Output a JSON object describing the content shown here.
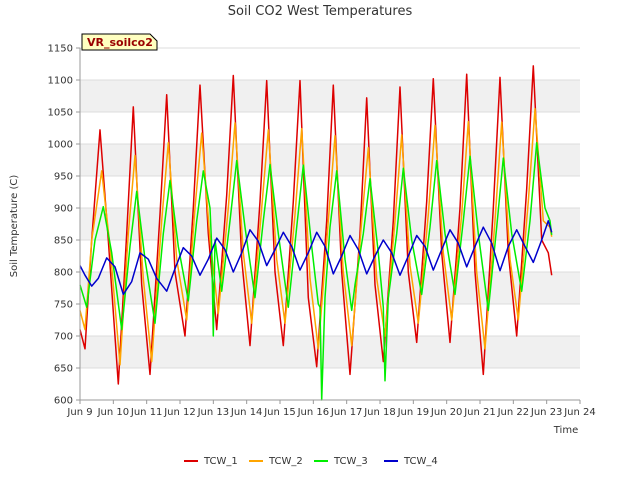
{
  "chart_data": {
    "type": "line",
    "title": "Soil CO2 West Temperatures",
    "xlabel": "Time",
    "ylabel": "Soil Temperature (C)",
    "badge": "VR_soilco2",
    "xlim": [
      9.0,
      24.0
    ],
    "ylim": [
      600,
      1150
    ],
    "x_ticks": [
      9,
      10,
      11,
      12,
      13,
      14,
      15,
      16,
      17,
      18,
      19,
      20,
      21,
      22,
      23,
      24
    ],
    "x_tick_labels": [
      "Jun 9",
      "Jun 10",
      "Jun 11",
      "Jun 12",
      "Jun 13",
      "Jun 14",
      "Jun 15",
      "Jun 16",
      "Jun 17",
      "Jun 18",
      "Jun 19",
      "Jun 20",
      "Jun 21",
      "Jun 22",
      "Jun 23",
      "Jun 24"
    ],
    "y_ticks": [
      600,
      650,
      700,
      750,
      800,
      850,
      900,
      950,
      1000,
      1050,
      1100,
      1150
    ],
    "grid": "horizontal bands",
    "legend_position": "bottom",
    "series": [
      {
        "name": "TCW_1",
        "color": "#dd0000",
        "x": [
          9.0,
          9.15,
          9.35,
          9.6,
          9.85,
          10.15,
          10.4,
          10.6,
          10.85,
          11.1,
          11.4,
          11.6,
          11.85,
          12.15,
          12.4,
          12.6,
          12.85,
          13.1,
          13.4,
          13.6,
          13.85,
          14.1,
          14.4,
          14.6,
          14.85,
          15.1,
          15.4,
          15.6,
          15.85,
          16.1,
          16.4,
          16.6,
          16.85,
          17.1,
          17.4,
          17.6,
          17.85,
          18.1,
          18.4,
          18.6,
          18.85,
          19.1,
          19.4,
          19.6,
          19.85,
          20.1,
          20.4,
          20.6,
          20.85,
          21.1,
          21.4,
          21.6,
          21.85,
          22.1,
          22.4,
          22.6,
          22.85,
          23.05,
          23.15
        ],
        "y": [
          710,
          680,
          850,
          1022,
          850,
          625,
          860,
          1058,
          780,
          640,
          890,
          1077,
          800,
          700,
          900,
          1092,
          860,
          710,
          920,
          1107,
          820,
          685,
          910,
          1099,
          800,
          685,
          910,
          1099,
          760,
          652,
          880,
          1092,
          800,
          640,
          860,
          1072,
          780,
          660,
          880,
          1089,
          800,
          690,
          910,
          1102,
          830,
          690,
          900,
          1109,
          800,
          640,
          900,
          1104,
          830,
          700,
          930,
          1122,
          850,
          830,
          795
        ]
      },
      {
        "name": "TCW_2",
        "color": "#ffa500",
        "x": [
          9.0,
          9.15,
          9.35,
          9.65,
          9.9,
          10.2,
          10.45,
          10.65,
          10.9,
          11.15,
          11.45,
          11.65,
          11.9,
          12.2,
          12.45,
          12.65,
          12.9,
          13.15,
          13.45,
          13.65,
          13.9,
          14.15,
          14.45,
          14.65,
          14.9,
          15.15,
          15.45,
          15.65,
          15.9,
          16.15,
          16.45,
          16.65,
          16.9,
          17.15,
          17.45,
          17.65,
          17.9,
          18.15,
          18.45,
          18.65,
          18.9,
          19.15,
          19.45,
          19.65,
          19.9,
          20.15,
          20.45,
          20.65,
          20.9,
          21.15,
          21.45,
          21.65,
          21.9,
          22.15,
          22.45,
          22.65,
          22.9,
          23.1,
          23.15
        ],
        "y": [
          740,
          710,
          850,
          958,
          840,
          655,
          860,
          982,
          790,
          660,
          880,
          1002,
          820,
          725,
          900,
          1017,
          850,
          735,
          900,
          1033,
          830,
          720,
          900,
          1022,
          820,
          720,
          890,
          1024,
          790,
          680,
          880,
          1013,
          800,
          685,
          880,
          994,
          790,
          700,
          880,
          1014,
          810,
          720,
          890,
          1029,
          830,
          725,
          890,
          1035,
          800,
          680,
          880,
          1034,
          820,
          725,
          910,
          1055,
          880,
          870,
          855
        ]
      },
      {
        "name": "TCW_3",
        "color": "#00ee00",
        "x": [
          9.0,
          9.2,
          9.45,
          9.7,
          9.95,
          10.25,
          10.5,
          10.7,
          10.95,
          11.25,
          11.5,
          11.7,
          11.95,
          12.25,
          12.5,
          12.7,
          12.9,
          12.95,
          13.0,
          13.05,
          13.25,
          13.5,
          13.7,
          13.95,
          14.25,
          14.5,
          14.7,
          14.95,
          15.25,
          15.5,
          15.7,
          15.95,
          16.15,
          16.2,
          16.25,
          16.35,
          16.5,
          16.7,
          16.95,
          17.15,
          17.25,
          17.5,
          17.7,
          17.95,
          18.1,
          18.15,
          18.25,
          18.5,
          18.7,
          18.95,
          19.25,
          19.5,
          19.7,
          19.95,
          20.25,
          20.5,
          20.7,
          20.95,
          21.25,
          21.5,
          21.7,
          21.95,
          22.25,
          22.5,
          22.7,
          22.95,
          23.1,
          23.15
        ],
        "y": [
          780,
          745,
          850,
          902,
          830,
          710,
          840,
          926,
          820,
          720,
          860,
          943,
          840,
          755,
          880,
          958,
          900,
          840,
          700,
          850,
          770,
          880,
          974,
          870,
          760,
          880,
          968,
          860,
          745,
          870,
          967,
          840,
          750,
          745,
          600,
          760,
          870,
          958,
          820,
          740,
          780,
          860,
          946,
          830,
          745,
          630,
          760,
          860,
          962,
          850,
          765,
          870,
          974,
          860,
          765,
          880,
          981,
          860,
          740,
          870,
          978,
          860,
          770,
          880,
          1002,
          900,
          880,
          858
        ]
      },
      {
        "name": "TCW_4",
        "color": "#0000cc",
        "x": [
          9.0,
          9.15,
          9.35,
          9.55,
          9.8,
          10.05,
          10.3,
          10.55,
          10.8,
          11.05,
          11.3,
          11.6,
          11.85,
          12.1,
          12.35,
          12.6,
          12.85,
          13.1,
          13.35,
          13.6,
          13.85,
          14.1,
          14.35,
          14.6,
          14.85,
          15.1,
          15.35,
          15.6,
          15.85,
          16.1,
          16.35,
          16.6,
          16.85,
          17.1,
          17.35,
          17.6,
          17.85,
          18.1,
          18.35,
          18.6,
          18.85,
          19.1,
          19.35,
          19.6,
          19.85,
          20.1,
          20.35,
          20.6,
          20.85,
          21.1,
          21.35,
          21.6,
          21.85,
          22.1,
          22.35,
          22.6,
          22.85,
          23.05,
          23.15
        ],
        "y": [
          810,
          795,
          778,
          790,
          822,
          808,
          765,
          785,
          830,
          820,
          790,
          770,
          805,
          838,
          825,
          795,
          820,
          853,
          835,
          800,
          830,
          866,
          848,
          810,
          835,
          862,
          840,
          803,
          830,
          862,
          840,
          797,
          825,
          857,
          835,
          797,
          825,
          850,
          830,
          795,
          825,
          857,
          840,
          803,
          835,
          866,
          845,
          808,
          840,
          870,
          845,
          802,
          840,
          866,
          840,
          815,
          850,
          880,
          862
        ]
      }
    ]
  }
}
